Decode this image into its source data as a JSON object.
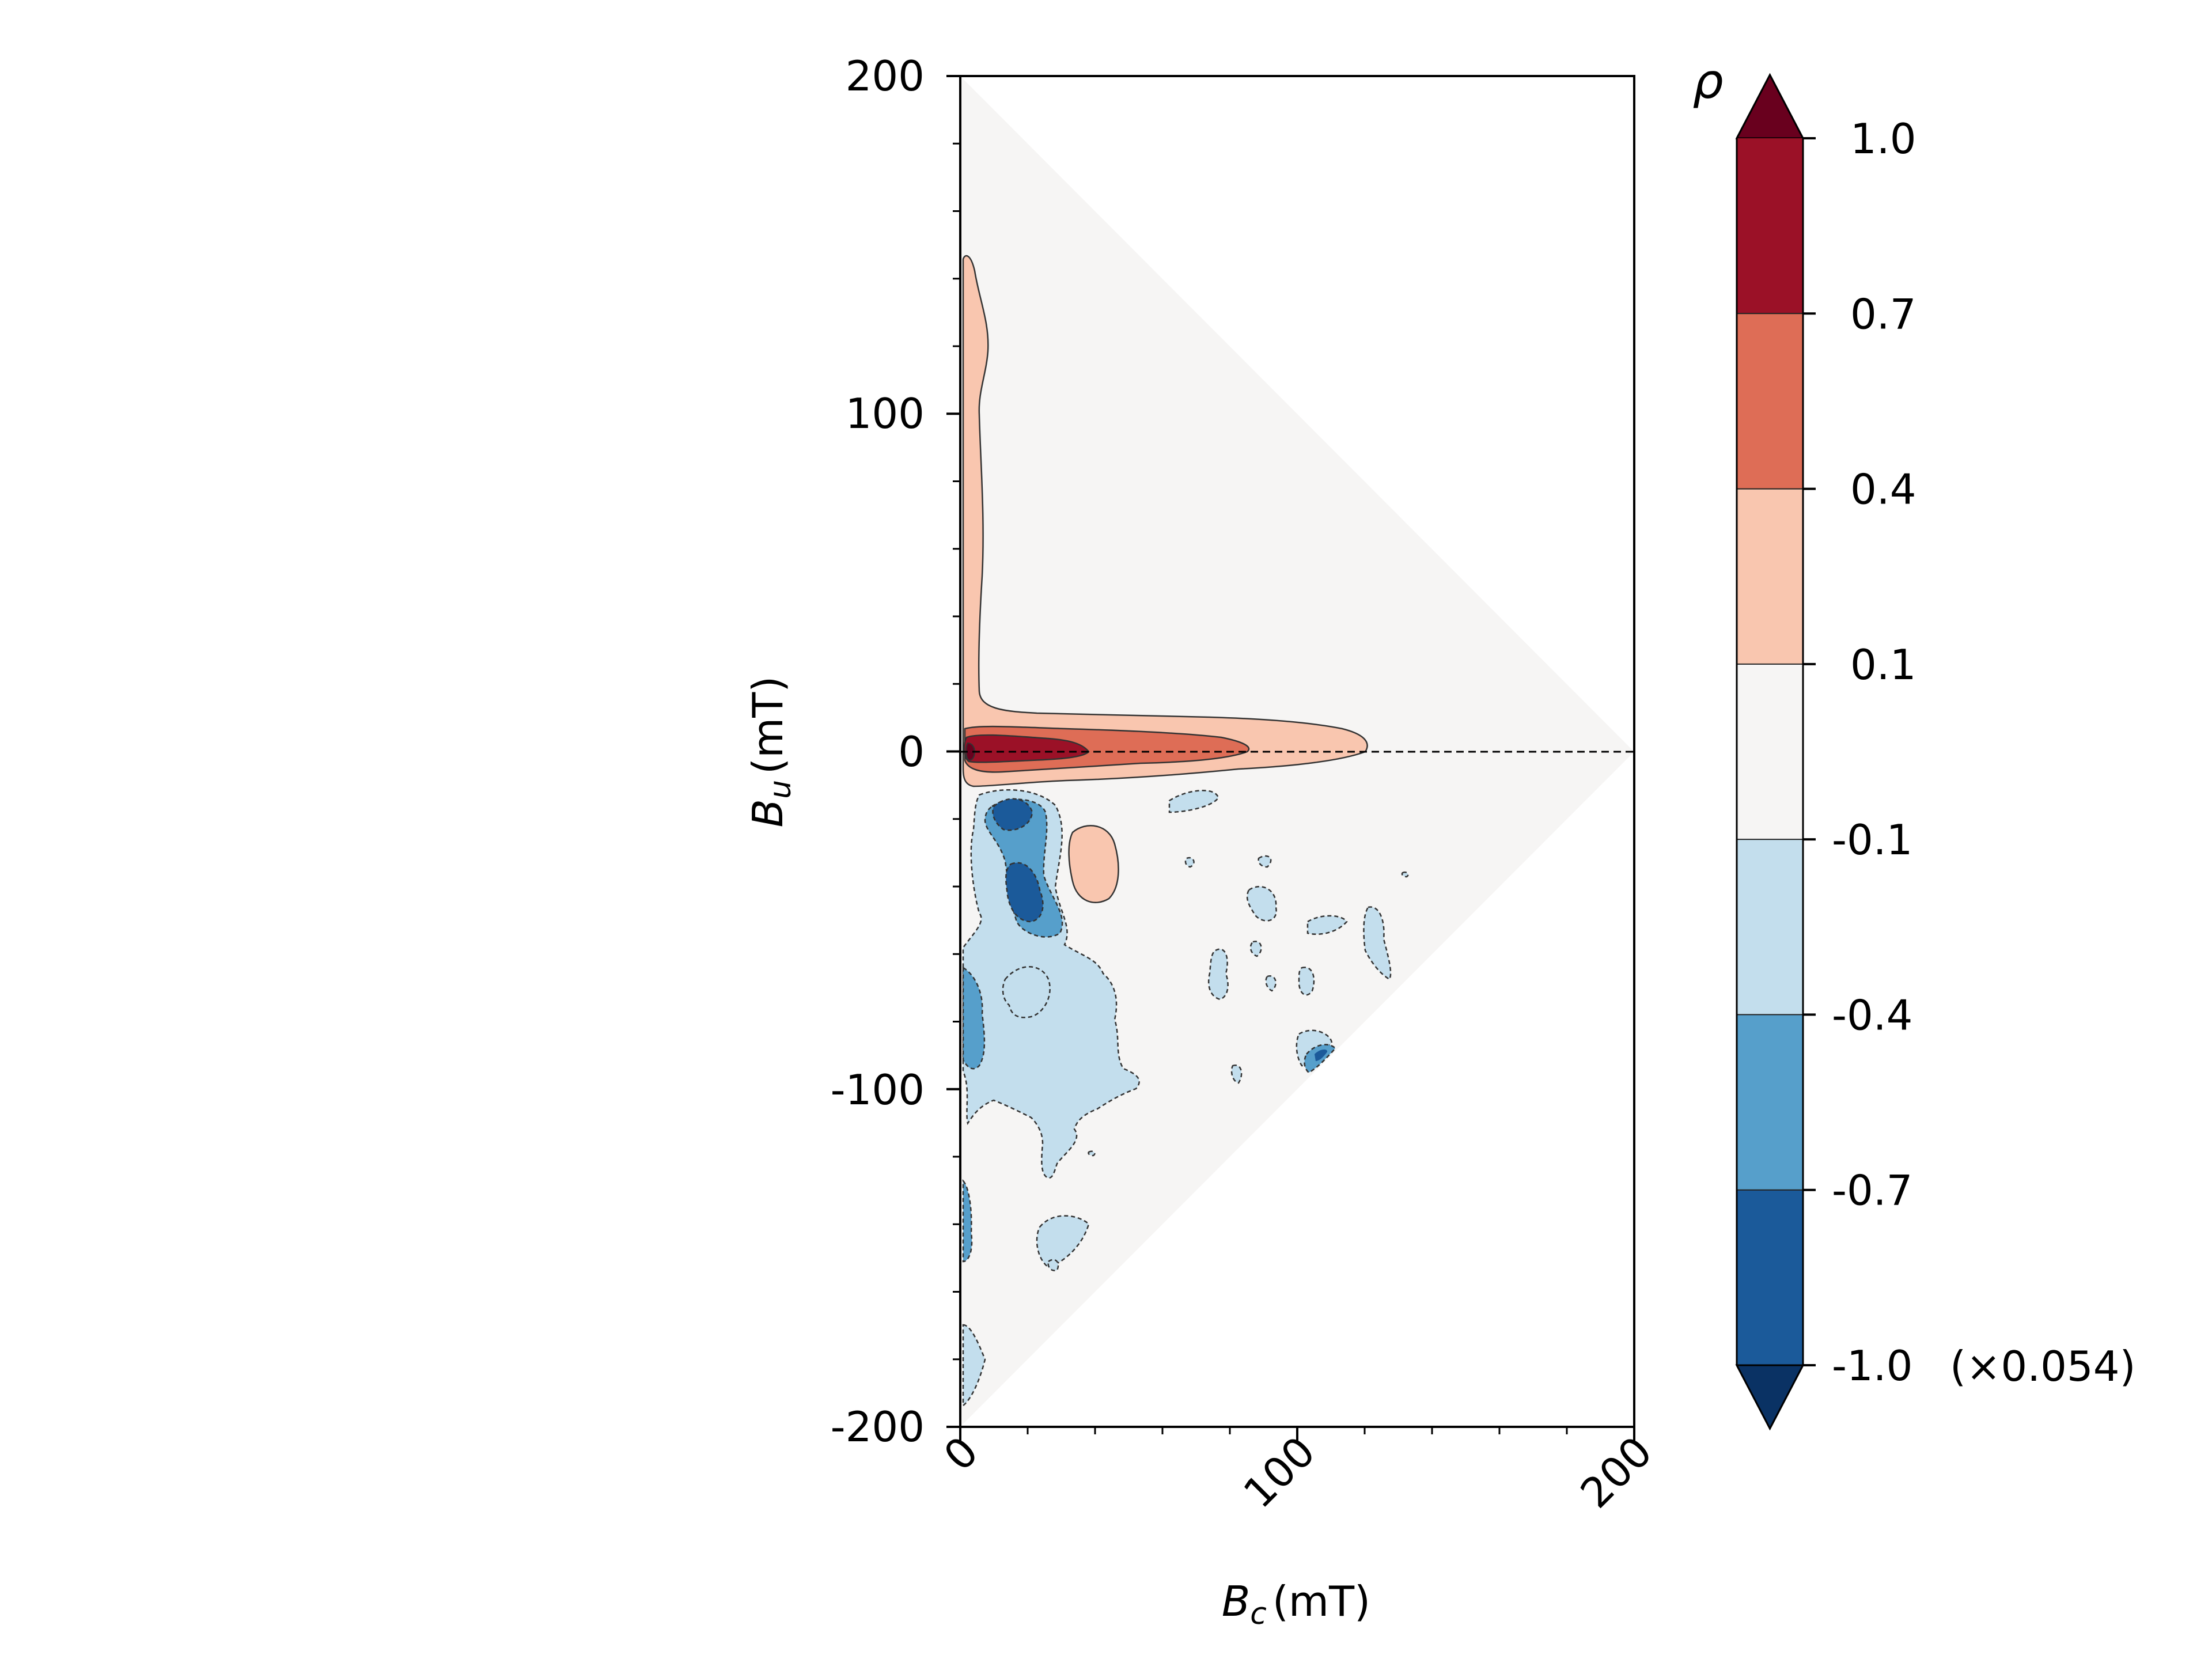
{
  "chart_data": {
    "type": "contour",
    "title": "",
    "xlabel": {
      "symbol": "B",
      "subscript": "c",
      "unit": "(mT)"
    },
    "ylabel": {
      "symbol": "B",
      "subscript": "u",
      "unit": "(mT)"
    },
    "xlim": [
      0,
      200
    ],
    "ylim": [
      -200,
      200
    ],
    "x_ticks": [
      0,
      100,
      200
    ],
    "x_tick_labels": [
      "0",
      "100",
      "200"
    ],
    "y_ticks": [
      200,
      100,
      0,
      -100,
      -200
    ],
    "y_tick_labels": [
      "200",
      "100",
      "0",
      "-100",
      "-200"
    ],
    "grid": false,
    "colorbar": {
      "label": "ρ",
      "scale_note": "(×0.054)",
      "levels": [
        1.0,
        0.7,
        0.4,
        0.1,
        -0.1,
        -0.4,
        -0.7,
        -1.0
      ],
      "level_labels": [
        "1.0",
        "0.7",
        "0.4",
        "0.1",
        "-0.1",
        "-0.4",
        "-0.7",
        "-1.0"
      ],
      "band_colors": [
        "#9b1127",
        "#de6d56",
        "#f9c6af",
        "#f6f5f4",
        "#c3deed",
        "#569fcb",
        "#1b5a9a"
      ],
      "extend_max_color": "#69001e",
      "extend_min_color": "#0a3264"
    },
    "domain": "triangle with vertices (0, 200), (200, 0), (0, -200); background level -0.1 to 0.1",
    "reference_line": {
      "y": 0,
      "x_range": [
        0,
        200
      ],
      "style": "dashed"
    },
    "regions": [
      {
        "name": "central ridge",
        "level_range": [
          0.1,
          0.4
        ],
        "x_range": [
          0,
          120
        ],
        "y_range": [
          -12,
          8
        ]
      },
      {
        "name": "vertical branch",
        "level_range": [
          0.1,
          0.4
        ],
        "x_range": [
          0,
          10
        ],
        "y_range": [
          0,
          146
        ]
      },
      {
        "name": "ridge core",
        "level_range": [
          0.4,
          0.7
        ],
        "x_range": [
          0,
          86
        ],
        "y_range": [
          -8,
          4
        ]
      },
      {
        "name": "ridge peak",
        "level_range": [
          0.7,
          1.0
        ],
        "x_range": [
          0,
          37
        ],
        "y_range": [
          -5,
          3
        ]
      },
      {
        "name": "ridge maximum",
        "level_range": [
          1.0,
          1.2
        ],
        "x_range": [
          1,
          4
        ],
        "y_range": [
          -2,
          2
        ]
      },
      {
        "name": "positive blob",
        "level_range": [
          0.1,
          0.4
        ],
        "x_range": [
          33,
          46
        ],
        "y_range": [
          -44,
          -23
        ]
      },
      {
        "name": "negative lobe upper",
        "level_range": [
          -0.7,
          -1.0
        ],
        "x_range": [
          11,
          25
        ],
        "y_range": [
          -28,
          -14
        ]
      },
      {
        "name": "negative lobe lower",
        "level_range": [
          -0.7,
          -1.0
        ],
        "x_range": [
          14,
          28
        ],
        "y_range": [
          -52,
          -35
        ]
      },
      {
        "name": "negative region near axis",
        "level_range": [
          -0.1,
          -0.4
        ],
        "x_range": [
          0,
          58
        ],
        "y_range": [
          -122,
          -12
        ]
      },
      {
        "name": "negative patch near lower edge",
        "level_range": [
          -0.4,
          -0.7
        ],
        "x_range": [
          100,
          112
        ],
        "y_range": [
          -96,
          -86
        ]
      },
      {
        "name": "negative tail",
        "level_range": [
          -0.1,
          -0.4
        ],
        "x_range": [
          0,
          8
        ],
        "y_range": [
          -200,
          -172
        ]
      }
    ]
  }
}
